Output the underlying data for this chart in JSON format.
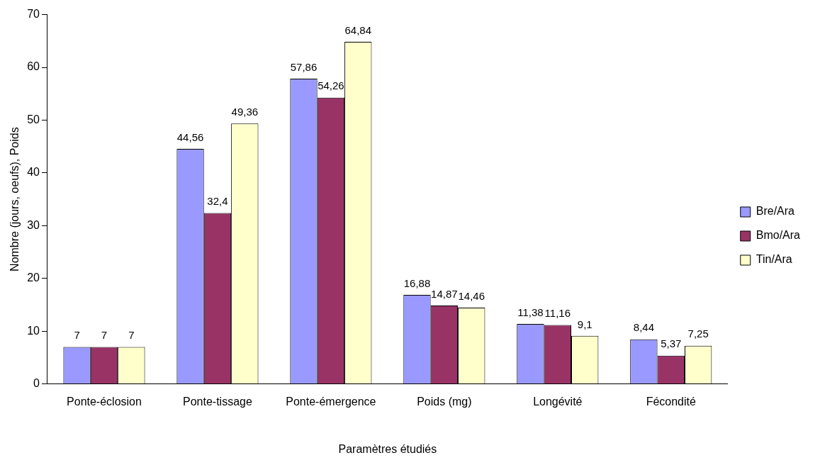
{
  "chart_data": {
    "type": "bar",
    "xlabel": "Paramètres étudiés",
    "ylabel": "Nombre (jours, oeufs), Poids",
    "categories": [
      "Ponte-éclosion",
      "Ponte-tissage",
      "Ponte-émergence",
      "Poids (mg)",
      "Longévité",
      "Fécondité"
    ],
    "series": [
      {
        "name": "Bre/Ara",
        "color": "#9999ff",
        "values": [
          7,
          44.56,
          57.86,
          16.88,
          11.38,
          8.44
        ],
        "value_labels": [
          "7",
          "44,56",
          "57,86",
          "16,88",
          "11,38",
          "8,44"
        ]
      },
      {
        "name": "Bmo/Ara",
        "color": "#993366",
        "values": [
          7,
          32.4,
          54.26,
          14.87,
          11.16,
          5.37
        ],
        "value_labels": [
          "7",
          "32,4",
          "54,26",
          "14,87",
          "11,16",
          "5,37"
        ]
      },
      {
        "name": "Tin/Ara",
        "color": "#ffffcc",
        "values": [
          7,
          49.36,
          64.84,
          14.46,
          9.1,
          7.25
        ],
        "value_labels": [
          "7",
          "49,36",
          "64,84",
          "14,46",
          "9,1",
          "7,25"
        ]
      }
    ],
    "ylim": [
      0,
      70
    ],
    "yticks": [
      0,
      10,
      20,
      30,
      40,
      50,
      60,
      70
    ],
    "grid": false,
    "legend": "right"
  }
}
